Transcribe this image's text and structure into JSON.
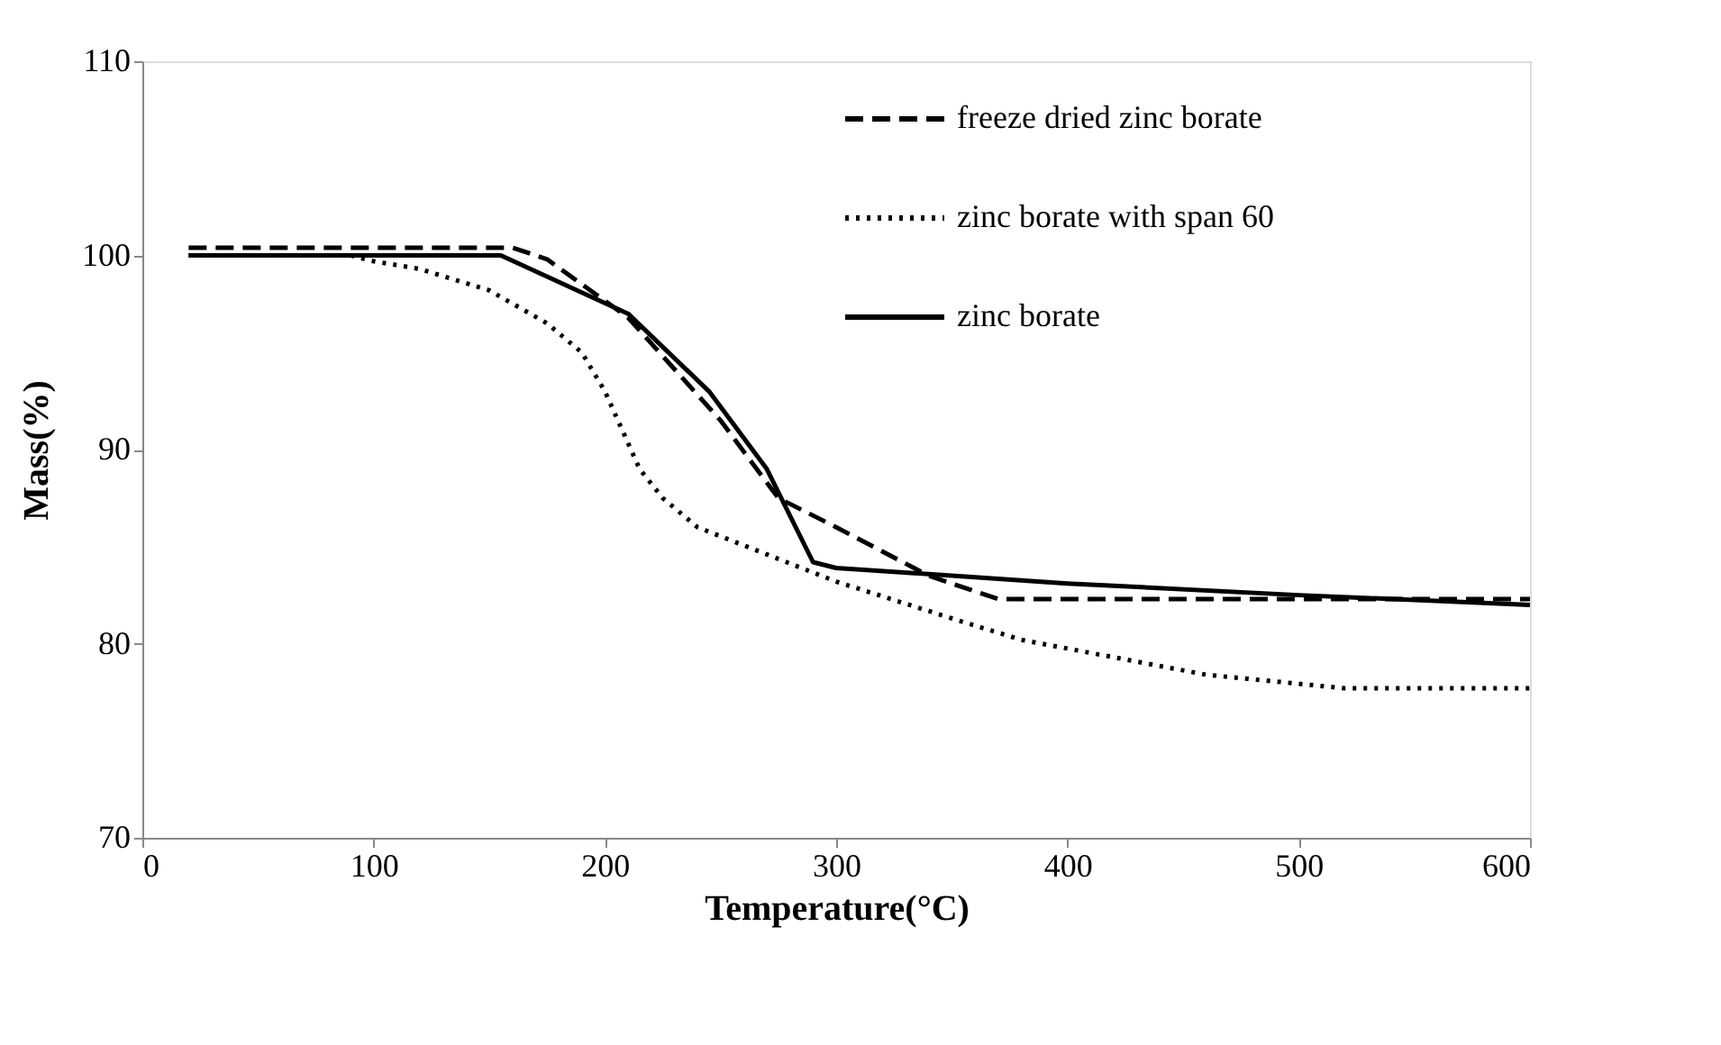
{
  "chart_data": {
    "type": "line",
    "xlabel": "Temperature(°C)",
    "ylabel": "Mass(%)",
    "xlim": [
      0,
      600
    ],
    "xticks": [
      0,
      100,
      200,
      300,
      400,
      500,
      600
    ],
    "ylim": [
      70,
      110
    ],
    "yticks": [
      70,
      80,
      90,
      100,
      110
    ],
    "grid": false,
    "legend": "top right",
    "marker": "none",
    "series": [
      {
        "name": "freeze dried zinc borate",
        "color": "#000000",
        "line_style": "dashed",
        "x": [
          20,
          160,
          175,
          210,
          250,
          275,
          300,
          340,
          370,
          450,
          600
        ],
        "values": [
          100.4,
          100.4,
          99.8,
          96.8,
          91.5,
          87.5,
          86,
          83.5,
          82.3,
          82.3,
          82.3
        ]
      },
      {
        "name": "zinc borate with span 60",
        "color": "#000000",
        "line_style": "dotted",
        "x": [
          20,
          90,
          100,
          120,
          150,
          175,
          190,
          200,
          215,
          225,
          240,
          270,
          300,
          350,
          380,
          420,
          460,
          520,
          600
        ],
        "values": [
          100,
          100,
          99.7,
          99.3,
          98.2,
          96.5,
          95,
          93,
          89,
          87.5,
          86,
          84.6,
          83.2,
          81.3,
          80.2,
          79.3,
          78.4,
          77.7,
          77.7
        ]
      },
      {
        "name": "zinc borate",
        "color": "#000000",
        "line_style": "solid",
        "x": [
          20,
          155,
          210,
          245,
          270,
          290,
          300,
          400,
          500,
          600
        ],
        "values": [
          100,
          100,
          97,
          93,
          89,
          84.2,
          83.9,
          83.1,
          82.5,
          82.0
        ]
      }
    ]
  }
}
